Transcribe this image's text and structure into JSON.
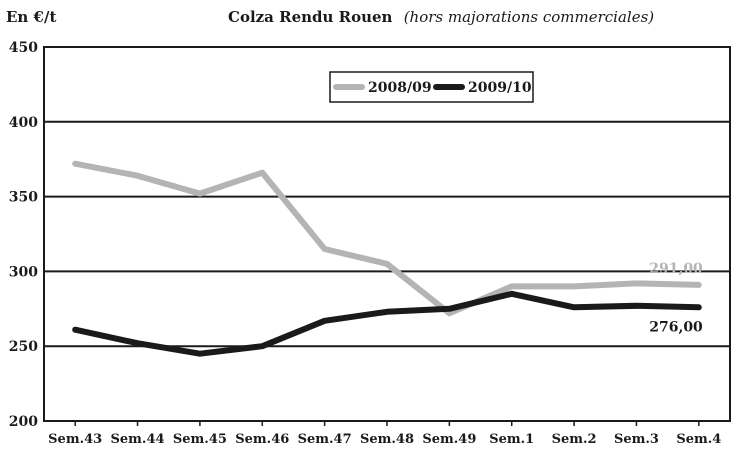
{
  "chart_data": {
    "type": "line",
    "unit_label": "En €/t",
    "title": "Colza Rendu Rouen",
    "subtitle": "(hors majorations commerciales)",
    "categories": [
      "Sem.43",
      "Sem.44",
      "Sem.45",
      "Sem.46",
      "Sem.47",
      "Sem.48",
      "Sem.49",
      "Sem.1",
      "Sem.2",
      "Sem.3",
      "Sem.4"
    ],
    "ylim": [
      200,
      450
    ],
    "yticks": [
      "200",
      "250",
      "300",
      "350",
      "400",
      "450"
    ],
    "grid": true,
    "legend_position": "top-right",
    "series": [
      {
        "name": "2008/09",
        "color": "#b4b4b4",
        "values": [
          372,
          364,
          352,
          366,
          315,
          305,
          272,
          290,
          290,
          292,
          291
        ]
      },
      {
        "name": "2009/10",
        "color": "#1a1a1a",
        "values": [
          261,
          252,
          245,
          250,
          267,
          273,
          275,
          285,
          276,
          277,
          276
        ]
      }
    ],
    "annotations": [
      {
        "series": 0,
        "text": "291,00",
        "color": "#b4b4b4"
      },
      {
        "series": 1,
        "text": "276,00",
        "color": "#1a1a1a"
      }
    ]
  }
}
